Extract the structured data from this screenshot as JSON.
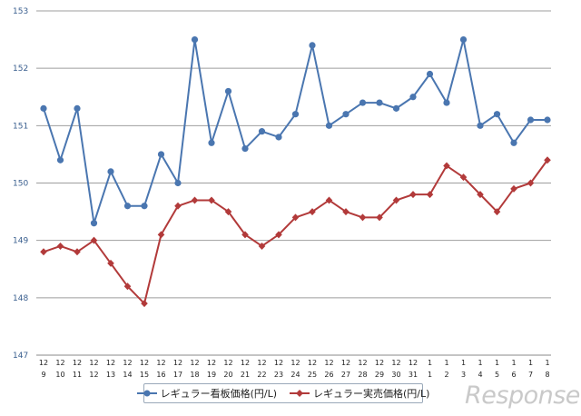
{
  "chart_data": {
    "type": "line",
    "ylim": [
      147,
      153
    ],
    "yticks": [
      "147",
      "148",
      "149",
      "150",
      "151",
      "152",
      "153"
    ],
    "x": [
      {
        "month": "12",
        "day": "9"
      },
      {
        "month": "12",
        "day": "10"
      },
      {
        "month": "12",
        "day": "11"
      },
      {
        "month": "12",
        "day": "12"
      },
      {
        "month": "12",
        "day": "13"
      },
      {
        "month": "12",
        "day": "14"
      },
      {
        "month": "12",
        "day": "15"
      },
      {
        "month": "12",
        "day": "16"
      },
      {
        "month": "12",
        "day": "17"
      },
      {
        "month": "12",
        "day": "18"
      },
      {
        "month": "12",
        "day": "19"
      },
      {
        "month": "12",
        "day": "20"
      },
      {
        "month": "12",
        "day": "21"
      },
      {
        "month": "12",
        "day": "22"
      },
      {
        "month": "12",
        "day": "23"
      },
      {
        "month": "12",
        "day": "24"
      },
      {
        "month": "12",
        "day": "25"
      },
      {
        "month": "12",
        "day": "26"
      },
      {
        "month": "12",
        "day": "27"
      },
      {
        "month": "12",
        "day": "28"
      },
      {
        "month": "12",
        "day": "29"
      },
      {
        "month": "12",
        "day": "30"
      },
      {
        "month": "12",
        "day": "31"
      },
      {
        "month": "1",
        "day": "1"
      },
      {
        "month": "1",
        "day": "2"
      },
      {
        "month": "1",
        "day": "3"
      },
      {
        "month": "1",
        "day": "4"
      },
      {
        "month": "1",
        "day": "5"
      },
      {
        "month": "1",
        "day": "6"
      },
      {
        "month": "1",
        "day": "7"
      },
      {
        "month": "1",
        "day": "8"
      }
    ],
    "series": [
      {
        "name": "レギュラー看板価格(円/L)",
        "color": "#4a76b0",
        "marker": "circle",
        "values": [
          151.3,
          150.4,
          151.3,
          149.3,
          150.2,
          149.6,
          149.6,
          150.5,
          150.0,
          152.5,
          150.7,
          151.6,
          150.6,
          150.9,
          150.8,
          151.2,
          152.4,
          151.0,
          151.2,
          151.4,
          151.4,
          151.3,
          151.5,
          151.9,
          151.4,
          152.5,
          151.0,
          151.2,
          150.7,
          151.1,
          151.1
        ]
      },
      {
        "name": "レギュラー実売価格(円/L)",
        "color": "#b23a3a",
        "marker": "diamond",
        "values": [
          148.8,
          148.9,
          148.8,
          149.0,
          148.6,
          148.2,
          147.9,
          149.1,
          149.6,
          149.7,
          149.7,
          149.5,
          149.1,
          148.9,
          149.1,
          149.4,
          149.5,
          149.7,
          149.5,
          149.4,
          149.4,
          149.7,
          149.8,
          149.8,
          150.3,
          150.1,
          149.8,
          149.5,
          149.9,
          150.0,
          150.4
        ]
      }
    ],
    "grid": true,
    "legend": "bottom-center"
  },
  "watermark": "Response."
}
